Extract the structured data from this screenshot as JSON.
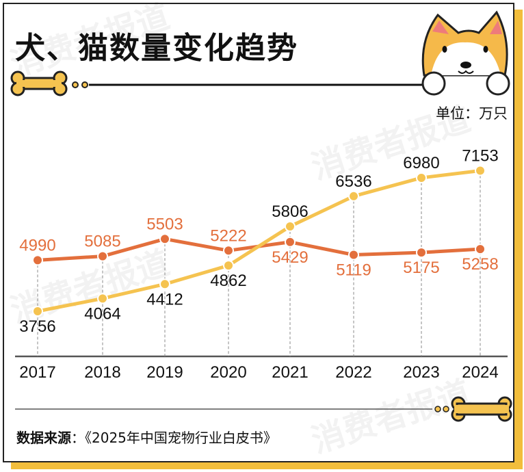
{
  "title": "犬、猫数量变化趋势",
  "unit": "单位：万只",
  "source_label": "数据来源",
  "source_text": "：《2025年中国宠物行业白皮书》",
  "watermark": "消费者报道",
  "colors": {
    "orange_series": "#E36F3C",
    "yellow_series": "#F5C350",
    "shadow": "#F2BE3C"
  },
  "icons": [
    "dog-face-icon",
    "bone-icon"
  ],
  "chart_data": {
    "type": "line",
    "title": "犬、猫数量变化趋势",
    "ylabel": "单位：万只",
    "categories": [
      "2017",
      "2018",
      "2019",
      "2020",
      "2021",
      "2022",
      "2023",
      "2024"
    ],
    "series": [
      {
        "color": "#E36F3C",
        "values": [
          4990,
          5085,
          5503,
          5222,
          5429,
          5119,
          5175,
          5258
        ]
      },
      {
        "color": "#F5C350",
        "values": [
          3756,
          4064,
          4412,
          4862,
          5806,
          6536,
          6980,
          7153
        ]
      }
    ],
    "grid": false,
    "legend": "none"
  }
}
